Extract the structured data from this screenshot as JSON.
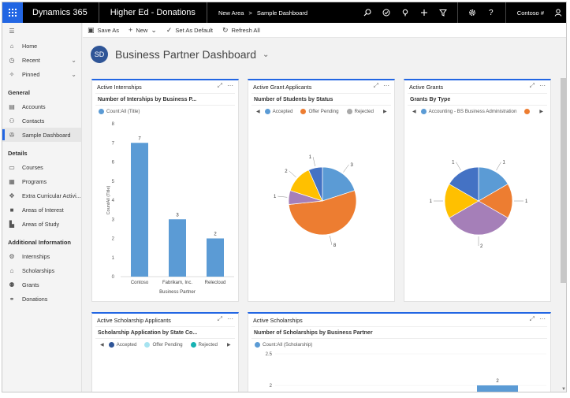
{
  "topbar": {
    "brand": "Dynamics 365",
    "app_title": "Higher Ed - Donations",
    "area": "New Area",
    "separator": ">",
    "page": "Sample Dashboard",
    "user": "Contoso #",
    "icons": [
      "search-icon",
      "task-icon",
      "lightbulb-icon",
      "plus-icon",
      "filter-icon",
      "gear-icon",
      "help-icon",
      "person-icon"
    ]
  },
  "nav": {
    "top_items": [
      {
        "label": "Home",
        "icon": "home-icon"
      },
      {
        "label": "Recent",
        "icon": "clock-icon",
        "chevron": true
      },
      {
        "label": "Pinned",
        "icon": "pin-icon",
        "chevron": true
      }
    ],
    "sections": [
      {
        "header": "General",
        "items": [
          {
            "label": "Accounts"
          },
          {
            "label": "Contacts"
          },
          {
            "label": "Sample Dashboard",
            "selected": true
          }
        ]
      },
      {
        "header": "Details",
        "items": [
          {
            "label": "Courses"
          },
          {
            "label": "Programs"
          },
          {
            "label": "Extra Curricular Activi..."
          },
          {
            "label": "Areas of Interest"
          },
          {
            "label": "Areas of Study"
          }
        ]
      },
      {
        "header": "Additional Information",
        "items": [
          {
            "label": "Internships"
          },
          {
            "label": "Scholarships"
          },
          {
            "label": "Grants"
          },
          {
            "label": "Donations"
          }
        ]
      }
    ]
  },
  "commands": {
    "save_as": "Save As",
    "new": "New",
    "set_default": "Set As Default",
    "refresh": "Refresh All"
  },
  "dashboard": {
    "title": "Business Partner Dashboard",
    "avatar": "SD"
  },
  "cards": {
    "internships": {
      "title": "Active Internships",
      "subtitle": "Number of Interships by Business P...",
      "legend": "Count:All (Title)"
    },
    "grant_applicants": {
      "title": "Active Grant Applicants",
      "subtitle": "Number of Students by Status"
    },
    "grants": {
      "title": "Active Grants",
      "subtitle": "Grants By Type"
    },
    "scholarship_applicants": {
      "title": "Active Scholarship Applicants",
      "subtitle": "Scholarship Application by State Co..."
    },
    "scholarships": {
      "title": "Active Scholarships",
      "subtitle": "Number of Scholarships by Business Partner",
      "legend": "Count:All (Scholarship)"
    }
  },
  "chart_data": [
    {
      "type": "bar",
      "categories": [
        "Contoso",
        "Fabrikam, Inc.",
        "Relecloud"
      ],
      "values": [
        7,
        3,
        2
      ],
      "xlabel": "Business Partner",
      "ylabel": "CountAll (Title)",
      "ylim": [
        0,
        8
      ],
      "yticks": [
        0,
        1,
        2,
        3,
        4,
        5,
        6,
        7,
        8
      ],
      "color": "#5b9bd5"
    },
    {
      "type": "pie",
      "labels": [
        "Accepted",
        "Offer Pending",
        "Rejected"
      ],
      "legend_colors": [
        "#5b9bd5",
        "#ed7d31",
        "#a9a9a9"
      ],
      "slices": [
        {
          "value": 3,
          "color": "#5b9bd5"
        },
        {
          "value": 8,
          "color": "#ed7d31"
        },
        {
          "value": 1,
          "color": "#a57fb8"
        },
        {
          "value": 2,
          "color": "#ffc000"
        },
        {
          "value": 1,
          "color": "#4472c4"
        }
      ]
    },
    {
      "type": "pie",
      "legend": [
        "Accounting - BS Business Administration"
      ],
      "legend_colors": [
        "#5b9bd5",
        "#ed7d31"
      ],
      "slices": [
        {
          "value": 1,
          "color": "#5b9bd5"
        },
        {
          "value": 1,
          "color": "#ed7d31"
        },
        {
          "value": 2,
          "color": "#a57fb8"
        },
        {
          "value": 1,
          "color": "#ffc000"
        },
        {
          "value": 1,
          "color": "#4472c4"
        }
      ]
    },
    {
      "type": "bar",
      "legend": [
        "Accepted",
        "Offer Pending",
        "Rejected"
      ],
      "legend_colors": [
        "#2f5597",
        "#a6e3f0",
        "#17b2b2"
      ],
      "values": []
    },
    {
      "type": "bar",
      "values": [
        2
      ],
      "ylim": [
        0,
        2.5
      ],
      "yticks": [
        2,
        2.5
      ],
      "color": "#5b9bd5"
    }
  ]
}
